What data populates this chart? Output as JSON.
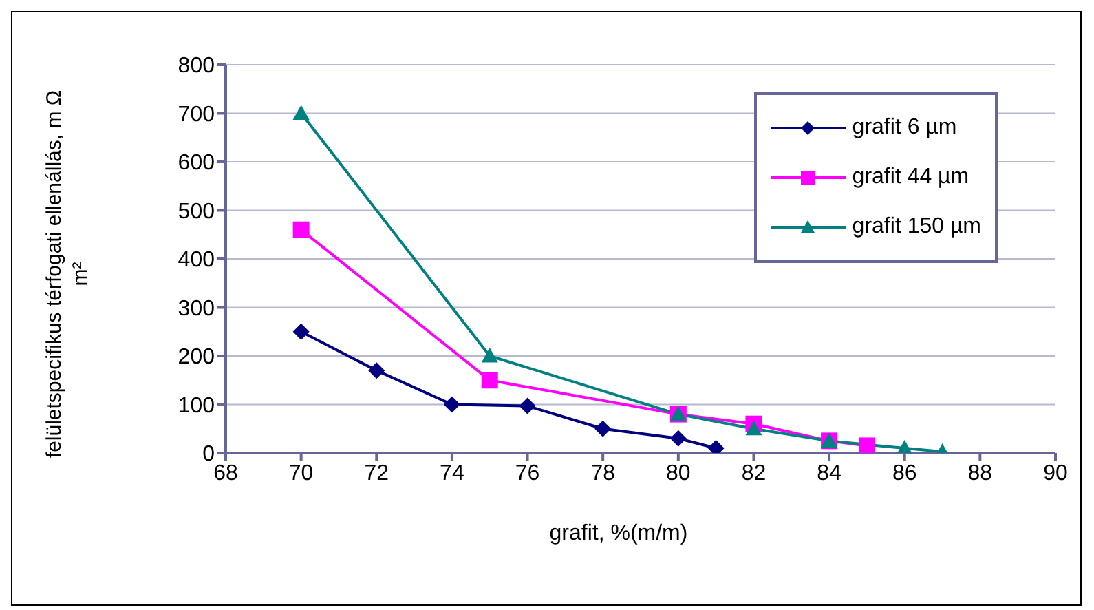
{
  "chart_data": {
    "type": "line",
    "xlabel": "grafit, %(m/m)",
    "ylabel": "felületspecifikus térfogati ellenállás, m Ω m²",
    "xlim": [
      68,
      90
    ],
    "xticks": [
      68,
      70,
      72,
      74,
      76,
      78,
      80,
      82,
      84,
      86,
      88,
      90
    ],
    "ylim": [
      0,
      800
    ],
    "yticks": [
      0,
      100,
      200,
      300,
      400,
      500,
      600,
      700,
      800
    ],
    "grid": "y",
    "legend": "top right",
    "line_style": "solid",
    "series": [
      {
        "name": "grafit 6 µm",
        "color": "#000080",
        "marker": "diamond",
        "x": [
          70,
          72,
          74,
          76,
          78,
          80,
          81
        ],
        "values": [
          250,
          170,
          100,
          97,
          50,
          30,
          10
        ]
      },
      {
        "name": "grafit 44 µm",
        "color": "#ff00ff",
        "marker": "square",
        "x": [
          70,
          75,
          80,
          82,
          84,
          85
        ],
        "values": [
          460,
          150,
          80,
          60,
          25,
          15
        ]
      },
      {
        "name": "grafit 150 µm",
        "color": "#008080",
        "marker": "triangle",
        "x": [
          70,
          75,
          80,
          82,
          84,
          86,
          87
        ],
        "values": [
          700,
          200,
          80,
          50,
          25,
          10,
          3
        ]
      }
    ]
  }
}
